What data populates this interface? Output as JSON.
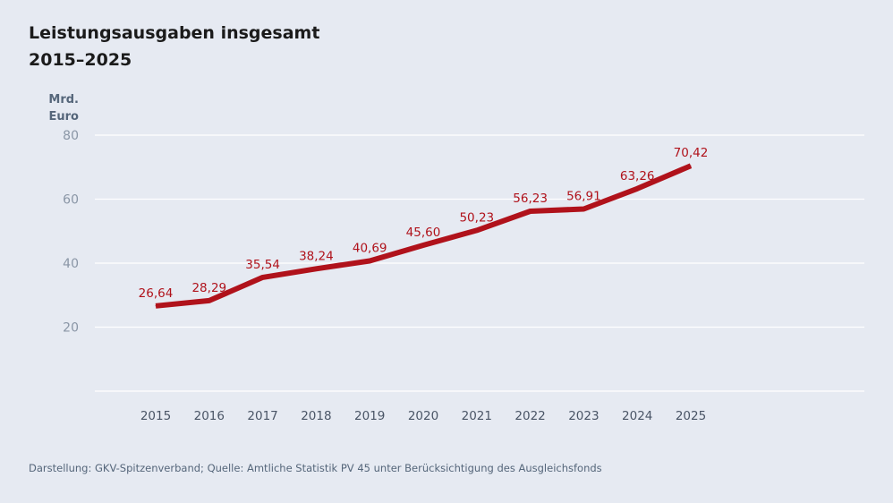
{
  "chart_data": {
    "type": "line",
    "title": "Leistungsausgaben insgesamt",
    "subtitle": "2015–2025",
    "ylabel_line1": "Mrd.",
    "ylabel_line2": "Euro",
    "categories": [
      "2015",
      "2016",
      "2017",
      "2018",
      "2019",
      "2020",
      "2021",
      "2022",
      "2023",
      "2024",
      "2025"
    ],
    "series": [
      {
        "values": [
          26.64,
          28.29,
          35.54,
          38.24,
          40.69,
          45.6,
          50.23,
          56.23,
          56.91,
          63.26,
          70.42
        ],
        "labels": [
          "26,64",
          "28,29",
          "35,54",
          "38,24",
          "40,69",
          "45,60",
          "50,23",
          "56,23",
          "56,91",
          "63,26",
          "70,42"
        ],
        "color": "#b0121b"
      }
    ],
    "ylim": [
      0,
      80
    ],
    "yticks": [
      20,
      40,
      60,
      80
    ],
    "ytick_labels": [
      "20",
      "40",
      "60",
      "80"
    ],
    "grid": true,
    "gridline_color": "#ffffff",
    "axis_text_color": "#8a96a6"
  },
  "footer": "Darstellung: GKV-Spitzenverband; Quelle: Amtliche Statistik PV 45 unter Berücksichtigung des Ausgleichsfonds"
}
